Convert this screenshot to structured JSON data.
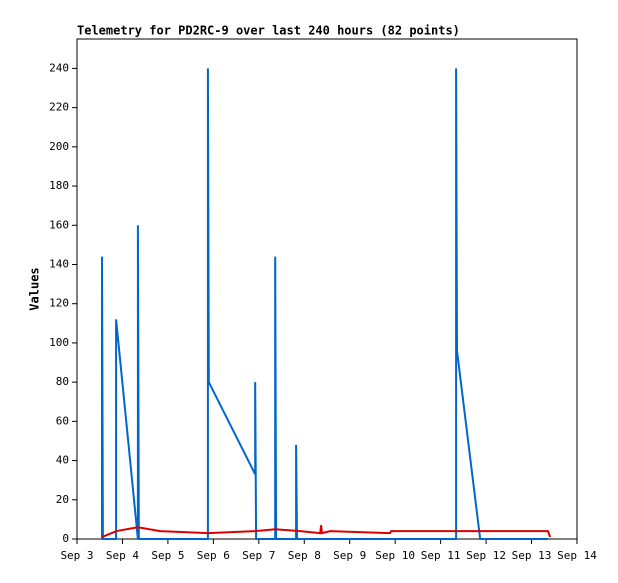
{
  "chart_data": {
    "type": "line",
    "title": "Telemetry for PD2RC-9 over last 240 hours (82 points)",
    "y_label": "Values",
    "series": [
      {
        "color": "#0066cc",
        "x": [
          3.55,
          3.55,
          3.57,
          3.86,
          3.86,
          4.34,
          4.34,
          4.36,
          5.88,
          5.88,
          5.9,
          6.92,
          6.92,
          6.94,
          7.36,
          7.36,
          7.38,
          7.82,
          7.82,
          7.84,
          11.34,
          11.34,
          11.36,
          11.87,
          13.36
        ],
        "values": [
          0,
          144,
          0,
          0,
          112,
          0,
          160,
          0,
          0,
          240,
          80,
          33,
          80,
          0,
          0,
          144,
          0,
          0,
          48,
          0,
          0,
          240,
          96,
          0,
          0
        ]
      },
      {
        "color": "#dd0000",
        "x": [
          3.55,
          3.86,
          4.34,
          4.83,
          5.88,
          6.92,
          7.36,
          7.91,
          8.35,
          8.37,
          8.39,
          8.57,
          9.89,
          9.91,
          13.36,
          13.41
        ],
        "values": [
          1,
          4,
          6,
          4,
          3,
          4,
          5,
          4,
          3,
          7,
          3,
          4,
          3,
          4,
          4,
          1
        ]
      }
    ],
    "xlim": [
      3,
      14
    ],
    "xticks": [
      {
        "value": 3,
        "label": "Sep 3"
      },
      {
        "value": 4,
        "label": "Sep 4"
      },
      {
        "value": 5,
        "label": "Sep 5"
      },
      {
        "value": 6,
        "label": "Sep 6"
      },
      {
        "value": 7,
        "label": "Sep 7"
      },
      {
        "value": 8,
        "label": "Sep 8"
      },
      {
        "value": 9,
        "label": "Sep 9"
      },
      {
        "value": 10,
        "label": "Sep 10"
      },
      {
        "value": 11,
        "label": "Sep 11"
      },
      {
        "value": 12,
        "label": "Sep 12"
      },
      {
        "value": 13,
        "label": "Sep 13"
      },
      {
        "value": 14,
        "label": "Sep 14"
      }
    ],
    "ylim": [
      0,
      255
    ],
    "yticks": [
      0,
      20,
      40,
      60,
      80,
      100,
      120,
      140,
      160,
      180,
      200,
      220,
      240
    ]
  }
}
